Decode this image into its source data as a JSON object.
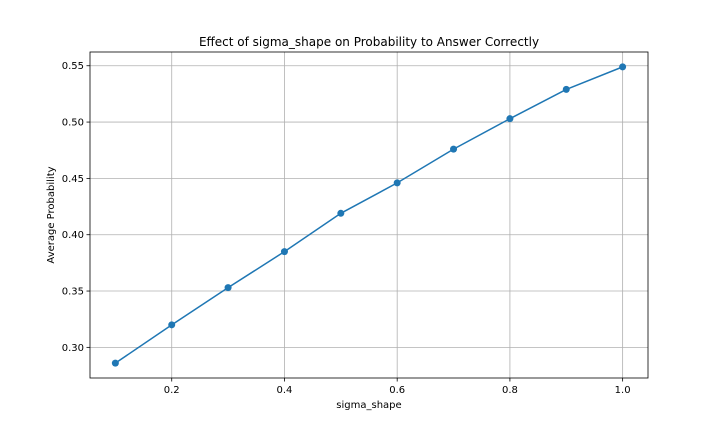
{
  "chart_data": {
    "type": "line",
    "title": "Effect of sigma_shape on Probability to Answer Correctly",
    "xlabel": "sigma_shape",
    "ylabel": "Average Probability",
    "x": [
      0.1,
      0.2,
      0.3,
      0.4,
      0.5,
      0.6,
      0.7,
      0.8,
      0.9,
      1.0
    ],
    "series": [
      {
        "values": [
          0.286,
          0.32,
          0.353,
          0.385,
          0.419,
          0.446,
          0.476,
          0.503,
          0.529,
          0.549
        ],
        "color": "#1f77b4",
        "marker": "circle"
      }
    ],
    "xlim": [
      0.055,
      1.045
    ],
    "ylim": [
      0.2728,
      0.5622
    ],
    "xticks": [
      0.2,
      0.4,
      0.6,
      0.8,
      1.0
    ],
    "xtick_labels": [
      "0.2",
      "0.4",
      "0.6",
      "0.8",
      "1.0"
    ],
    "yticks": [
      0.3,
      0.35,
      0.4,
      0.45,
      0.5,
      0.55
    ],
    "ytick_labels": [
      "0.30",
      "0.35",
      "0.40",
      "0.45",
      "0.50",
      "0.55"
    ],
    "grid": true
  }
}
